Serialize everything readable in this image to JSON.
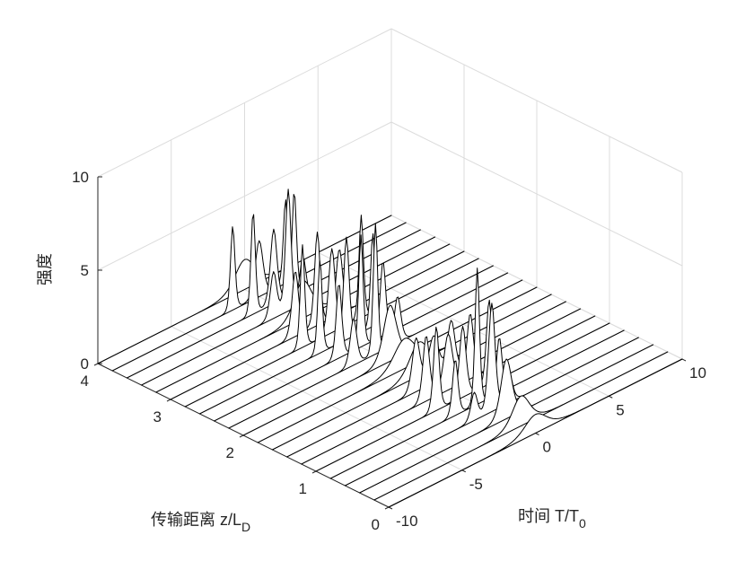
{
  "chart_data": {
    "type": "waterfall3d",
    "title": "",
    "xlabel": "时间 T/T",
    "xlabel_sub": "0",
    "ylabel": "传输距离 z/L",
    "ylabel_sub": "D",
    "zlabel": "强度",
    "xlim": [
      -10,
      10
    ],
    "ylim": [
      0,
      4
    ],
    "zlim": [
      0,
      10
    ],
    "xticks": [
      "-10",
      "-5",
      "0",
      "5",
      "10"
    ],
    "yticks": [
      "0",
      "1",
      "2",
      "3",
      "4"
    ],
    "zticks": [
      "0",
      "5",
      "10"
    ],
    "grid": true,
    "line_color": "#000000",
    "n_traces": 21,
    "traces": [
      {
        "z": 0.0,
        "peaks": [
          [
            0.0,
            1.0,
            1.0
          ]
        ]
      },
      {
        "z": 0.2,
        "peaks": [
          [
            0.0,
            1.6,
            0.8
          ]
        ]
      },
      {
        "z": 0.4,
        "peaks": [
          [
            0.0,
            3.2,
            0.5
          ]
        ]
      },
      {
        "z": 0.6,
        "peaks": [
          [
            0.0,
            5.8,
            0.3
          ],
          [
            -1.2,
            1.5,
            0.3
          ],
          [
            1.2,
            1.5,
            0.3
          ]
        ]
      },
      {
        "z": 0.8,
        "peaks": [
          [
            0.0,
            7.3,
            0.2
          ],
          [
            -1.5,
            3.0,
            0.25
          ],
          [
            1.5,
            3.0,
            0.25
          ]
        ]
      },
      {
        "z": 1.0,
        "peaks": [
          [
            0.0,
            3.8,
            0.3
          ],
          [
            -1.8,
            4.5,
            0.25
          ],
          [
            1.8,
            4.5,
            0.25
          ]
        ]
      },
      {
        "z": 1.2,
        "peaks": [
          [
            0.0,
            3.0,
            0.4
          ],
          [
            -1.5,
            3.5,
            0.3
          ],
          [
            1.5,
            3.5,
            0.3
          ]
        ]
      },
      {
        "z": 1.4,
        "peaks": [
          [
            0.0,
            2.5,
            0.5
          ],
          [
            -1.2,
            2.8,
            0.35
          ],
          [
            1.2,
            2.8,
            0.35
          ]
        ]
      },
      {
        "z": 1.6,
        "peaks": [
          [
            0.0,
            1.8,
            0.9
          ]
        ]
      },
      {
        "z": 1.8,
        "peaks": [
          [
            0.0,
            1.6,
            1.0
          ]
        ]
      },
      {
        "z": 2.0,
        "peaks": [
          [
            0.0,
            3.0,
            0.6
          ]
        ]
      },
      {
        "z": 2.2,
        "peaks": [
          [
            0.0,
            7.0,
            0.2
          ],
          [
            -1.5,
            2.5,
            0.3
          ],
          [
            1.5,
            2.5,
            0.3
          ]
        ]
      },
      {
        "z": 2.4,
        "peaks": [
          [
            0.0,
            6.0,
            0.2
          ],
          [
            -1.5,
            4.0,
            0.25
          ],
          [
            1.5,
            4.0,
            0.25
          ]
        ]
      },
      {
        "z": 2.6,
        "peaks": [
          [
            0.0,
            5.5,
            0.25
          ],
          [
            -1.8,
            5.0,
            0.2
          ],
          [
            1.8,
            5.0,
            0.2
          ]
        ]
      },
      {
        "z": 2.8,
        "peaks": [
          [
            0.0,
            4.5,
            0.3
          ],
          [
            -2.0,
            5.5,
            0.2
          ],
          [
            2.0,
            5.5,
            0.2
          ]
        ]
      },
      {
        "z": 3.0,
        "peaks": [
          [
            0.0,
            5.0,
            0.25
          ],
          [
            -1.5,
            3.5,
            0.3
          ],
          [
            1.5,
            3.5,
            0.3
          ]
        ]
      },
      {
        "z": 3.2,
        "peaks": [
          [
            0.0,
            2.0,
            0.8
          ]
        ]
      },
      {
        "z": 3.4,
        "peaks": [
          [
            0.0,
            6.5,
            0.25
          ],
          [
            -1.0,
            2.5,
            0.3
          ],
          [
            1.0,
            2.5,
            0.3
          ]
        ]
      },
      {
        "z": 3.6,
        "peaks": [
          [
            0.0,
            4.0,
            0.3
          ],
          [
            -1.4,
            5.5,
            0.2
          ],
          [
            1.4,
            5.5,
            0.2
          ]
        ]
      },
      {
        "z": 3.8,
        "peaks": [
          [
            0.0,
            3.0,
            0.35
          ],
          [
            -1.8,
            4.5,
            0.2
          ],
          [
            1.8,
            4.5,
            0.2
          ]
        ]
      },
      {
        "z": 4.0,
        "peaks": [
          [
            0.0,
            1.6,
            0.9
          ]
        ]
      }
    ]
  }
}
